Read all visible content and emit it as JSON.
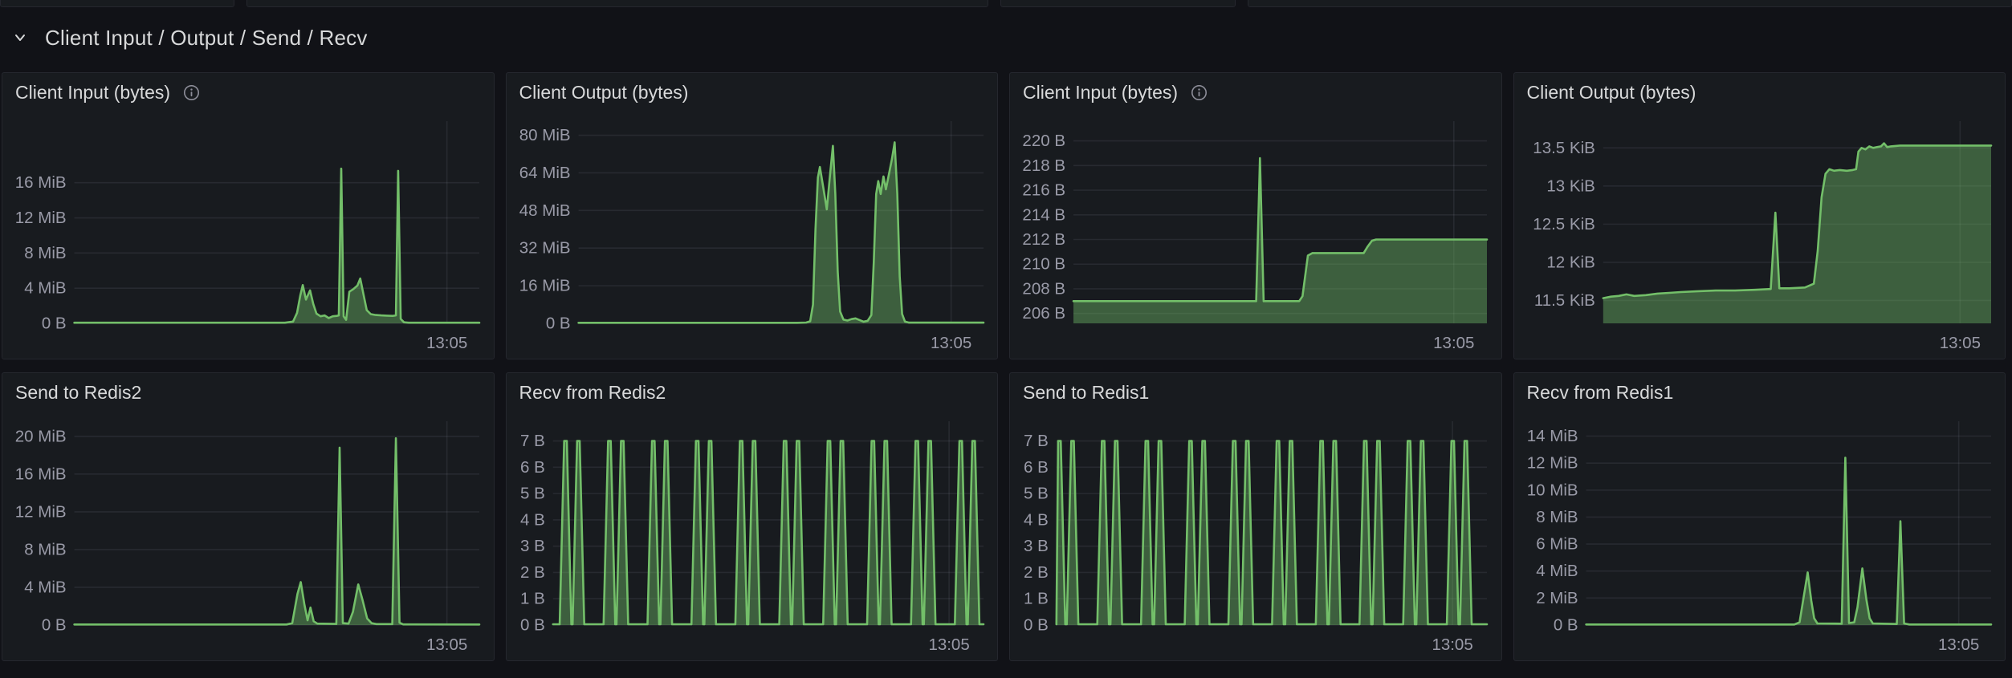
{
  "colors": {
    "page_bg": "#111217",
    "panel_bg": "#181b1f",
    "panel_border": "#25272e",
    "title_text": "#d8d9da",
    "axis_text": "rgba(204,204,220,0.72)",
    "grid_line": "rgba(204,204,220,0.09)",
    "series_line": "#73bf69",
    "series_fill": "rgba(115,191,105,0.42)"
  },
  "section": {
    "title": "Client Input / Output / Send / Recv"
  },
  "panels": [
    {
      "title": "Client Input (bytes)",
      "info_icon": true,
      "chart_data": {
        "type": "area",
        "unit": "MiB",
        "ylim": [
          0,
          23
        ],
        "grid": true,
        "y_ticks": [
          {
            "value": 0,
            "label": "0 B"
          },
          {
            "value": 4,
            "label": "4 MiB"
          },
          {
            "value": 8,
            "label": "8 MiB"
          },
          {
            "value": 12,
            "label": "12 MiB"
          },
          {
            "value": 16,
            "label": "16 MiB"
          }
        ],
        "x_tick": {
          "label": "13:05",
          "pct": 92
        },
        "points": [
          [
            0,
            0.07
          ],
          [
            52,
            0.07
          ],
          [
            54,
            0.2
          ],
          [
            55,
            1.2
          ],
          [
            55.8,
            3.2
          ],
          [
            56.4,
            4.35
          ],
          [
            57.2,
            2.7
          ],
          [
            58.2,
            3.75
          ],
          [
            59,
            2.2
          ],
          [
            59.8,
            1.1
          ],
          [
            60.8,
            0.8
          ],
          [
            61.8,
            0.9
          ],
          [
            62.8,
            0.6
          ],
          [
            63.8,
            0.8
          ],
          [
            64.8,
            0.85
          ],
          [
            65.3,
            0.9
          ],
          [
            65.9,
            17.6
          ],
          [
            66.5,
            0.8
          ],
          [
            67.1,
            0.4
          ],
          [
            67.9,
            3.6
          ],
          [
            68.9,
            3.9
          ],
          [
            69.9,
            4.3
          ],
          [
            70.6,
            5.1
          ],
          [
            71.4,
            3.3
          ],
          [
            72.2,
            1.5
          ],
          [
            73.2,
            1.05
          ],
          [
            74.4,
            0.95
          ],
          [
            75.8,
            0.9
          ],
          [
            77.2,
            0.88
          ],
          [
            78.6,
            0.85
          ],
          [
            79.4,
            0.9
          ],
          [
            79.95,
            17.35
          ],
          [
            80.6,
            0.5
          ],
          [
            81.4,
            0.12
          ],
          [
            82.6,
            0.07
          ],
          [
            100,
            0.07
          ]
        ]
      }
    },
    {
      "title": "Client Output (bytes)",
      "info_icon": false,
      "chart_data": {
        "type": "area",
        "unit": "MiB",
        "ylim": [
          0,
          86
        ],
        "grid": true,
        "y_ticks": [
          {
            "value": 0,
            "label": "0 B"
          },
          {
            "value": 16,
            "label": "16 MiB"
          },
          {
            "value": 32,
            "label": "32 MiB"
          },
          {
            "value": 48,
            "label": "48 MiB"
          },
          {
            "value": 64,
            "label": "64 MiB"
          },
          {
            "value": 80,
            "label": "80 MiB"
          }
        ],
        "x_tick": {
          "label": "13:05",
          "pct": 92
        },
        "points": [
          [
            0,
            0.25
          ],
          [
            54,
            0.25
          ],
          [
            56.2,
            0.35
          ],
          [
            57.2,
            0.9
          ],
          [
            57.9,
            8
          ],
          [
            58.5,
            40
          ],
          [
            59.1,
            62
          ],
          [
            59.6,
            66.5
          ],
          [
            60.4,
            58
          ],
          [
            61.3,
            48.5
          ],
          [
            62.1,
            63
          ],
          [
            62.8,
            75.5
          ],
          [
            63.4,
            55
          ],
          [
            64,
            22
          ],
          [
            64.6,
            5
          ],
          [
            65.4,
            1.6
          ],
          [
            66.4,
            1.2
          ],
          [
            67.4,
            1.8
          ],
          [
            68.4,
            2.1
          ],
          [
            69.4,
            1.4
          ],
          [
            70.4,
            0.7
          ],
          [
            71.4,
            1.1
          ],
          [
            72.3,
            3.5
          ],
          [
            72.9,
            26
          ],
          [
            73.5,
            55
          ],
          [
            74,
            60.5
          ],
          [
            74.6,
            55
          ],
          [
            75.3,
            62.5
          ],
          [
            75.9,
            57
          ],
          [
            76.7,
            64
          ],
          [
            77.4,
            70
          ],
          [
            78.05,
            77
          ],
          [
            78.7,
            55
          ],
          [
            79.3,
            20
          ],
          [
            79.9,
            4
          ],
          [
            80.6,
            0.8
          ],
          [
            81.6,
            0.3
          ],
          [
            100,
            0.3
          ]
        ]
      }
    },
    {
      "title": "Client Input (bytes)",
      "info_icon": true,
      "chart_data": {
        "type": "area",
        "unit": "B",
        "ylim": [
          205.2,
          221.6
        ],
        "grid": true,
        "y_ticks": [
          {
            "value": 206,
            "label": "206 B"
          },
          {
            "value": 208,
            "label": "208 B"
          },
          {
            "value": 210,
            "label": "210 B"
          },
          {
            "value": 212,
            "label": "212 B"
          },
          {
            "value": 214,
            "label": "214 B"
          },
          {
            "value": 216,
            "label": "216 B"
          },
          {
            "value": 218,
            "label": "218 B"
          },
          {
            "value": 220,
            "label": "220 B"
          }
        ],
        "x_tick": {
          "label": "13:05",
          "pct": 92
        },
        "points": [
          [
            0,
            207
          ],
          [
            44.2,
            207
          ],
          [
            45.1,
            218.6
          ],
          [
            46,
            207
          ],
          [
            54.6,
            207
          ],
          [
            55.4,
            207.4
          ],
          [
            56.7,
            210.7
          ],
          [
            57.8,
            210.9
          ],
          [
            70.2,
            210.9
          ],
          [
            71.1,
            211.4
          ],
          [
            72.2,
            211.9
          ],
          [
            73.2,
            212
          ],
          [
            100,
            212
          ]
        ]
      }
    },
    {
      "title": "Client Output (bytes)",
      "info_icon": false,
      "chart_data": {
        "type": "area",
        "unit": "KiB",
        "ylim": [
          11.2,
          13.85
        ],
        "grid": true,
        "y_ticks": [
          {
            "value": 11.5,
            "label": "11.5 KiB"
          },
          {
            "value": 12,
            "label": "12 KiB"
          },
          {
            "value": 12.5,
            "label": "12.5 KiB"
          },
          {
            "value": 13,
            "label": "13 KiB"
          },
          {
            "value": 13.5,
            "label": "13.5 KiB"
          }
        ],
        "x_tick": {
          "label": "13:05",
          "pct": 92
        },
        "points": [
          [
            0,
            11.53
          ],
          [
            2,
            11.55
          ],
          [
            4,
            11.56
          ],
          [
            6,
            11.58
          ],
          [
            8,
            11.56
          ],
          [
            11,
            11.57
          ],
          [
            14,
            11.59
          ],
          [
            17,
            11.6
          ],
          [
            20,
            11.61
          ],
          [
            24,
            11.62
          ],
          [
            29,
            11.63
          ],
          [
            34,
            11.63
          ],
          [
            39,
            11.64
          ],
          [
            43.2,
            11.65
          ],
          [
            44.4,
            12.65
          ],
          [
            45.4,
            11.66
          ],
          [
            48,
            11.66
          ],
          [
            52,
            11.67
          ],
          [
            54.3,
            11.72
          ],
          [
            55.3,
            12.15
          ],
          [
            56.3,
            12.85
          ],
          [
            57.3,
            13.16
          ],
          [
            58.3,
            13.22
          ],
          [
            59.5,
            13.2
          ],
          [
            61,
            13.21
          ],
          [
            62.8,
            13.2
          ],
          [
            64.3,
            13.21
          ],
          [
            65.2,
            13.22
          ],
          [
            65.8,
            13.45
          ],
          [
            66.6,
            13.5
          ],
          [
            67.6,
            13.48
          ],
          [
            68.6,
            13.52
          ],
          [
            69.6,
            13.5
          ],
          [
            70.6,
            13.51
          ],
          [
            71.6,
            13.52
          ],
          [
            72.4,
            13.56
          ],
          [
            73.2,
            13.51
          ],
          [
            74.2,
            13.52
          ],
          [
            76.5,
            13.53
          ],
          [
            100,
            13.53
          ]
        ]
      }
    },
    {
      "title": "Send to Redis2",
      "info_icon": false,
      "chart_data": {
        "type": "area",
        "unit": "MiB",
        "ylim": [
          0,
          21.6
        ],
        "grid": true,
        "y_ticks": [
          {
            "value": 0,
            "label": "0 B"
          },
          {
            "value": 4,
            "label": "4 MiB"
          },
          {
            "value": 8,
            "label": "8 MiB"
          },
          {
            "value": 12,
            "label": "12 MiB"
          },
          {
            "value": 16,
            "label": "16 MiB"
          },
          {
            "value": 20,
            "label": "20 MiB"
          }
        ],
        "x_tick": {
          "label": "13:05",
          "pct": 92
        },
        "points": [
          [
            0,
            0.06
          ],
          [
            52.4,
            0.06
          ],
          [
            53.8,
            0.2
          ],
          [
            55.1,
            3.3
          ],
          [
            55.9,
            4.55
          ],
          [
            56.8,
            2.2
          ],
          [
            57.6,
            0.5
          ],
          [
            58.3,
            1.85
          ],
          [
            59.1,
            0.4
          ],
          [
            60,
            0.15
          ],
          [
            64.7,
            0.12
          ],
          [
            65.5,
            18.8
          ],
          [
            66.3,
            0.2
          ],
          [
            67.7,
            0.15
          ],
          [
            68.8,
            1.4
          ],
          [
            70.1,
            4.3
          ],
          [
            71.2,
            2.6
          ],
          [
            72.3,
            0.7
          ],
          [
            73.4,
            0.2
          ],
          [
            74.6,
            0.1
          ],
          [
            78.5,
            0.1
          ],
          [
            79.4,
            19.8
          ],
          [
            80.3,
            0.25
          ],
          [
            81.2,
            0.07
          ],
          [
            100,
            0.06
          ]
        ]
      }
    },
    {
      "title": "Recv from Redis2",
      "info_icon": false,
      "chart_data": {
        "type": "area",
        "unit": "B",
        "ylim": [
          0,
          7.75
        ],
        "grid": true,
        "y_ticks": [
          {
            "value": 0,
            "label": "0 B"
          },
          {
            "value": 1,
            "label": "1 B"
          },
          {
            "value": 2,
            "label": "2 B"
          },
          {
            "value": 3,
            "label": "3 B"
          },
          {
            "value": 4,
            "label": "4 B"
          },
          {
            "value": 5,
            "label": "5 B"
          },
          {
            "value": 6,
            "label": "6 B"
          },
          {
            "value": 7,
            "label": "7 B"
          }
        ],
        "x_tick": {
          "label": "13:05",
          "pct": 92
        },
        "spikes": {
          "base": 0.03,
          "apex": 7,
          "half_width": 1.35,
          "top_half_width": 0.3,
          "centers": [
            2.9,
            5.9,
            13.1,
            16.1,
            23.3,
            26.3,
            33.5,
            36.5,
            43.7,
            46.7,
            53.9,
            56.9,
            64.1,
            67.1,
            74.3,
            77.3,
            84.5,
            87.5,
            94.7,
            97.7
          ]
        }
      }
    },
    {
      "title": "Send to Redis1",
      "info_icon": false,
      "chart_data": {
        "type": "area",
        "unit": "B",
        "ylim": [
          0,
          7.75
        ],
        "grid": true,
        "y_ticks": [
          {
            "value": 0,
            "label": "0 B"
          },
          {
            "value": 1,
            "label": "1 B"
          },
          {
            "value": 2,
            "label": "2 B"
          },
          {
            "value": 3,
            "label": "3 B"
          },
          {
            "value": 4,
            "label": "4 B"
          },
          {
            "value": 5,
            "label": "5 B"
          },
          {
            "value": 6,
            "label": "6 B"
          },
          {
            "value": 7,
            "label": "7 B"
          }
        ],
        "x_tick": {
          "label": "13:05",
          "pct": 92
        },
        "spikes": {
          "base": 0.03,
          "apex": 7,
          "half_width": 1.35,
          "top_half_width": 0.3,
          "centers": [
            0.7,
            3.75,
            10.85,
            13.9,
            21.0,
            24.05,
            31.15,
            34.2,
            41.3,
            44.35,
            51.45,
            54.5,
            61.6,
            64.65,
            71.75,
            74.8,
            81.9,
            84.95,
            92.05,
            95.1
          ]
        }
      }
    },
    {
      "title": "Recv from Redis1",
      "info_icon": false,
      "chart_data": {
        "type": "area",
        "unit": "MiB",
        "ylim": [
          0,
          15.1
        ],
        "grid": true,
        "y_ticks": [
          {
            "value": 0,
            "label": "0 B"
          },
          {
            "value": 2,
            "label": "2 MiB"
          },
          {
            "value": 4,
            "label": "4 MiB"
          },
          {
            "value": 6,
            "label": "6 MiB"
          },
          {
            "value": 8,
            "label": "8 MiB"
          },
          {
            "value": 10,
            "label": "10 MiB"
          },
          {
            "value": 12,
            "label": "12 MiB"
          },
          {
            "value": 14,
            "label": "14 MiB"
          }
        ],
        "x_tick": {
          "label": "13:05",
          "pct": 92
        },
        "points": [
          [
            0,
            0.04
          ],
          [
            51.4,
            0.04
          ],
          [
            52.7,
            0.2
          ],
          [
            54.7,
            3.9
          ],
          [
            55.6,
            1.8
          ],
          [
            56.3,
            0.5
          ],
          [
            57.1,
            0.12
          ],
          [
            63.1,
            0.1
          ],
          [
            64,
            12.4
          ],
          [
            64.9,
            0.15
          ],
          [
            66.2,
            0.2
          ],
          [
            67,
            1.3
          ],
          [
            68.2,
            4.2
          ],
          [
            69.2,
            1.9
          ],
          [
            70,
            0.5
          ],
          [
            70.8,
            0.12
          ],
          [
            76.7,
            0.08
          ],
          [
            77.6,
            7.7
          ],
          [
            78.5,
            0.12
          ],
          [
            79.8,
            0.04
          ],
          [
            100,
            0.04
          ]
        ]
      }
    }
  ]
}
